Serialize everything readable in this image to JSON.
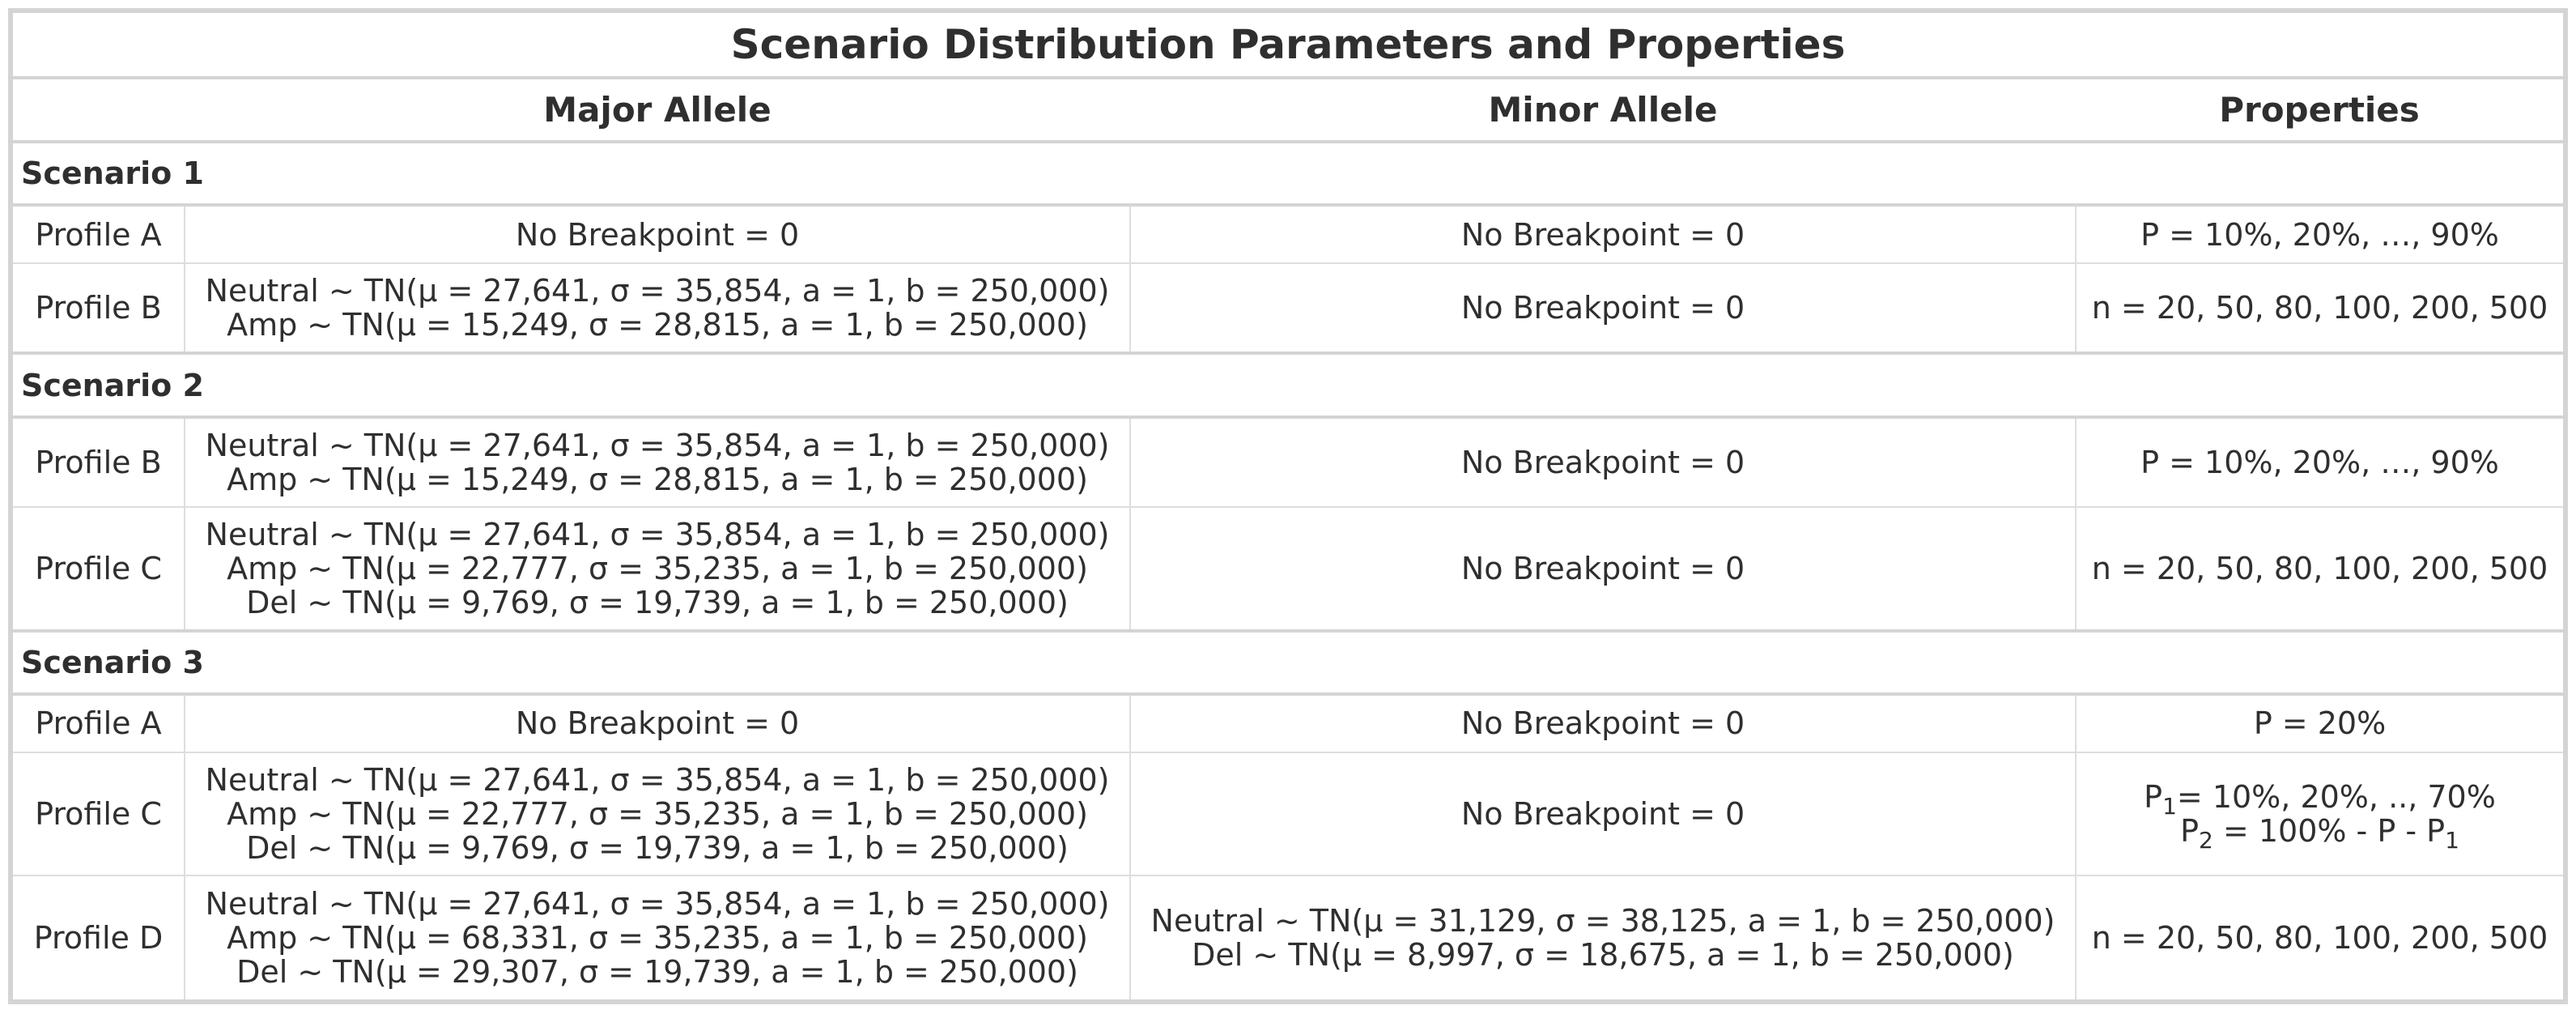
{
  "title": "Scenario Distribution Parameters and Properties",
  "columns": {
    "major": "Major Allele",
    "minor": "Minor Allele",
    "properties": "Properties"
  },
  "scenarios": [
    {
      "label": "Scenario 1",
      "rows": [
        {
          "profile": "Profile A",
          "major": [
            "No Breakpoint = 0"
          ],
          "minor": [
            "No Breakpoint = 0"
          ],
          "properties": [
            "P = 10%, 20%, …, 90%"
          ]
        },
        {
          "profile": "Profile B",
          "major": [
            "Neutral ~ TN(μ = 27,641, σ = 35,854, a = 1, b = 250,000)",
            "Amp ~ TN(μ = 15,249, σ = 28,815, a = 1, b = 250,000)"
          ],
          "minor": [
            "No Breakpoint = 0"
          ],
          "properties": [
            "n = 20, 50, 80, 100, 200, 500"
          ]
        }
      ]
    },
    {
      "label": "Scenario 2",
      "rows": [
        {
          "profile": "Profile B",
          "major": [
            "Neutral ~ TN(μ = 27,641, σ = 35,854, a = 1, b = 250,000)",
            "Amp ~ TN(μ = 15,249, σ = 28,815, a = 1, b = 250,000)"
          ],
          "minor": [
            "No Breakpoint = 0"
          ],
          "properties": [
            "P = 10%, 20%, …, 90%"
          ]
        },
        {
          "profile": "Profile C",
          "major": [
            "Neutral ~ TN(μ = 27,641, σ = 35,854, a = 1, b = 250,000)",
            "Amp ~ TN(μ = 22,777, σ = 35,235, a = 1, b = 250,000)",
            "Del ~ TN(μ = 9,769, σ = 19,739, a = 1, b = 250,000)"
          ],
          "minor": [
            "No Breakpoint = 0"
          ],
          "properties": [
            "n = 20, 50, 80, 100, 200, 500"
          ]
        }
      ]
    },
    {
      "label": "Scenario 3",
      "rows": [
        {
          "profile": "Profile A",
          "major": [
            "No Breakpoint = 0"
          ],
          "minor": [
            "No Breakpoint = 0"
          ],
          "properties": [
            "P = 20%"
          ]
        },
        {
          "profile": "Profile C",
          "major": [
            "Neutral ~ TN(μ = 27,641, σ = 35,854, a = 1, b = 250,000)",
            "Amp ~ TN(μ = 22,777, σ = 35,235, a = 1, b = 250,000)",
            "Del ~ TN(μ = 9,769, σ = 19,739, a = 1, b = 250,000)"
          ],
          "minor": [
            "No Breakpoint = 0"
          ],
          "properties_sub": {
            "p1_base": "P",
            "p1_sub": "1",
            "p1_rest": "= 10%, 20%, .., 70%",
            "p2_base": "P",
            "p2_sub": "2",
            "p2_mid": " = 100% - P - P",
            "p2_sub2": "1"
          }
        },
        {
          "profile": "Profile D",
          "major": [
            "Neutral ~ TN(μ = 27,641, σ = 35,854, a = 1, b = 250,000)",
            "Amp ~ TN(μ = 68,331, σ = 35,235, a = 1, b = 250,000)",
            "Del ~ TN(μ = 29,307, σ = 19,739, a = 1, b = 250,000)"
          ],
          "minor": [
            "Neutral ~ TN(μ = 31,129, σ = 38,125, a = 1, b = 250,000)",
            "Del ~ TN(μ = 8,997, σ = 18,675, a = 1, b = 250,000)"
          ],
          "properties": [
            "n = 20, 50, 80, 100, 200, 500"
          ]
        }
      ]
    }
  ]
}
